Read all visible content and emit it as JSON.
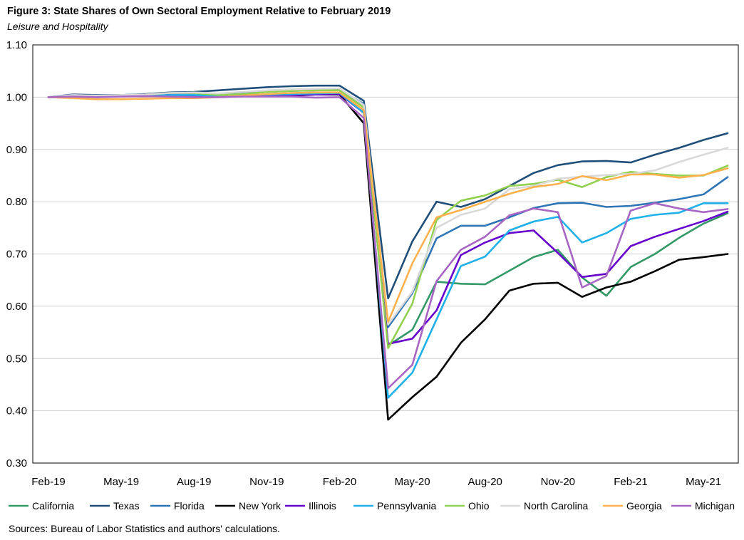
{
  "figure": {
    "title": "Figure 3: State Shares of Own Sectoral Employment Relative to February 2019",
    "subtitle": "Leisure and Hospitality",
    "source": "Sources: Bureau of Labor Statistics and authors' calculations."
  },
  "chart_data": {
    "type": "line",
    "x": [
      "Feb-19",
      "Mar-19",
      "Apr-19",
      "May-19",
      "Jun-19",
      "Jul-19",
      "Aug-19",
      "Sep-19",
      "Oct-19",
      "Nov-19",
      "Dec-19",
      "Jan-20",
      "Feb-20",
      "Mar-20",
      "Apr-20",
      "May-20",
      "Jun-20",
      "Jul-20",
      "Aug-20",
      "Sep-20",
      "Oct-20",
      "Nov-20",
      "Dec-20",
      "Jan-21",
      "Feb-21",
      "Mar-21",
      "Apr-21",
      "May-21",
      "Jun-21"
    ],
    "x_tick_labels": [
      "Feb-19",
      "May-19",
      "Aug-19",
      "Nov-19",
      "Feb-20",
      "May-20",
      "Aug-20",
      "Nov-20",
      "Feb-21",
      "May-21"
    ],
    "y_tick_labels": [
      "0.30",
      "0.40",
      "0.50",
      "0.60",
      "0.70",
      "0.80",
      "0.90",
      "1.00",
      "1.10"
    ],
    "ylim": [
      0.3,
      1.1
    ],
    "grid": true,
    "legend_position": "bottom",
    "series": [
      {
        "name": "California",
        "color": "#339966",
        "values": [
          1.0,
          1.003,
          1.002,
          1.004,
          1.005,
          1.008,
          1.008,
          1.003,
          1.006,
          1.01,
          1.012,
          1.014,
          1.015,
          0.985,
          0.525,
          0.555,
          0.647,
          0.643,
          0.642,
          0.668,
          0.694,
          0.708,
          0.655,
          0.62,
          0.675,
          0.7,
          0.731,
          0.758,
          0.778
        ]
      },
      {
        "name": "Texas",
        "color": "#1F4E79",
        "values": [
          1.0,
          1.005,
          1.004,
          1.004,
          1.006,
          1.009,
          1.01,
          1.013,
          1.016,
          1.019,
          1.021,
          1.022,
          1.022,
          0.993,
          0.615,
          0.724,
          0.8,
          0.79,
          0.805,
          0.83,
          0.855,
          0.87,
          0.877,
          0.878,
          0.875,
          0.89,
          0.903,
          0.918,
          0.931
        ]
      },
      {
        "name": "Florida",
        "color": "#2E75B6",
        "values": [
          1.0,
          1.004,
          1.003,
          1.004,
          1.005,
          1.007,
          1.008,
          1.006,
          1.008,
          1.011,
          1.012,
          1.013,
          1.014,
          0.987,
          0.56,
          0.625,
          0.73,
          0.754,
          0.754,
          0.77,
          0.788,
          0.797,
          0.798,
          0.79,
          0.792,
          0.798,
          0.805,
          0.814,
          0.847
        ]
      },
      {
        "name": "New York",
        "color": "#000000",
        "values": [
          1.0,
          1.002,
          1.001,
          1.002,
          1.002,
          1.003,
          1.003,
          1.001,
          1.002,
          1.002,
          1.003,
          1.005,
          1.005,
          0.95,
          0.383,
          0.426,
          0.465,
          0.53,
          0.575,
          0.63,
          0.643,
          0.645,
          0.618,
          0.636,
          0.647,
          0.667,
          0.689,
          0.694,
          0.7
        ]
      },
      {
        "name": "Illinois",
        "color": "#6600CC",
        "values": [
          1.0,
          1.001,
          1.0,
          1.002,
          1.002,
          1.003,
          1.002,
          1.001,
          1.002,
          1.003,
          1.004,
          1.005,
          1.006,
          0.97,
          0.528,
          0.538,
          0.592,
          0.698,
          0.722,
          0.74,
          0.745,
          0.702,
          0.656,
          0.662,
          0.715,
          0.733,
          0.748,
          0.763,
          0.781
        ]
      },
      {
        "name": "Pennsylvania",
        "color": "#1FB0E8",
        "values": [
          1.0,
          1.002,
          1.001,
          1.002,
          1.003,
          1.004,
          1.004,
          1.002,
          1.004,
          1.005,
          1.006,
          1.007,
          1.008,
          0.97,
          0.425,
          0.473,
          0.575,
          0.677,
          0.695,
          0.745,
          0.762,
          0.771,
          0.722,
          0.74,
          0.767,
          0.775,
          0.779,
          0.797,
          0.797
        ]
      },
      {
        "name": "Ohio",
        "color": "#92D050",
        "values": [
          1.0,
          1.003,
          1.002,
          1.004,
          1.005,
          1.008,
          1.008,
          1.004,
          1.006,
          1.01,
          1.012,
          1.013,
          1.013,
          0.98,
          0.52,
          0.605,
          0.765,
          0.802,
          0.812,
          0.83,
          0.834,
          0.842,
          0.828,
          0.847,
          0.857,
          0.853,
          0.85,
          0.85,
          0.869
        ]
      },
      {
        "name": "North Carolina",
        "color": "#D9D9D9",
        "values": [
          1.0,
          1.004,
          1.003,
          1.004,
          1.005,
          1.008,
          1.009,
          1.007,
          1.01,
          1.013,
          1.015,
          1.016,
          1.017,
          0.985,
          0.565,
          0.628,
          0.75,
          0.775,
          0.787,
          0.824,
          0.83,
          0.844,
          0.848,
          0.851,
          0.853,
          0.86,
          0.876,
          0.89,
          0.903
        ]
      },
      {
        "name": "Georgia",
        "color": "#FFB14E",
        "values": [
          1.0,
          0.998,
          0.996,
          0.996,
          0.997,
          0.998,
          0.998,
          1.0,
          1.003,
          1.006,
          1.008,
          1.009,
          1.009,
          0.975,
          0.57,
          0.682,
          0.77,
          0.784,
          0.8,
          0.815,
          0.828,
          0.834,
          0.849,
          0.841,
          0.852,
          0.852,
          0.846,
          0.851,
          0.864
        ]
      },
      {
        "name": "Michigan",
        "color": "#A866C4",
        "values": [
          1.0,
          1.001,
          1.0,
          1.001,
          1.002,
          1.001,
          1.0,
          1.0,
          1.001,
          1.001,
          1.001,
          0.999,
          1.0,
          0.96,
          0.443,
          0.488,
          0.648,
          0.708,
          0.733,
          0.774,
          0.787,
          0.78,
          0.636,
          0.658,
          0.783,
          0.797,
          0.787,
          0.78,
          0.786
        ]
      }
    ]
  }
}
